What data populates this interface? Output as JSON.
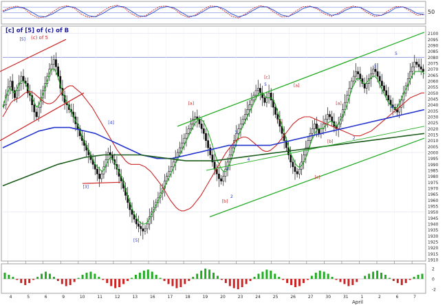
{
  "chart_data": [
    {
      "panel": "oscillator",
      "type": "line",
      "y_tick_labels": [
        "50"
      ],
      "series": [
        {
          "role": "fast",
          "color": "#cc2222",
          "values": [
            60,
            78,
            86,
            72,
            40,
            22,
            28,
            55,
            80,
            88,
            74,
            42,
            25,
            30,
            58,
            82,
            90,
            76,
            45,
            26,
            34,
            62,
            84,
            86,
            70,
            40,
            24,
            38,
            66,
            86,
            84,
            60,
            32,
            22,
            44,
            72,
            88,
            80,
            52,
            28,
            30,
            58,
            82,
            86,
            70,
            44,
            30,
            48,
            74,
            86,
            78,
            50,
            30,
            36,
            62,
            84,
            82,
            60,
            36,
            40
          ]
        },
        {
          "role": "slow",
          "color": "#2244cc",
          "values": [
            55,
            70,
            80,
            76,
            54,
            32,
            28,
            44,
            68,
            84,
            80,
            56,
            34,
            28,
            46,
            70,
            86,
            82,
            58,
            34,
            30,
            50,
            74,
            84,
            76,
            52,
            30,
            34,
            56,
            78,
            84,
            70,
            44,
            28,
            38,
            62,
            82,
            82,
            62,
            38,
            30,
            48,
            72,
            84,
            76,
            54,
            36,
            42,
            64,
            80,
            80,
            60,
            38,
            36,
            52,
            76,
            82,
            68,
            46,
            40
          ]
        }
      ]
    },
    {
      "panel": "price",
      "type": "candlestick",
      "title": "[c] of [5] of (c) of B",
      "subtitle": "(c) of 5",
      "ylim": [
        1910,
        2105
      ],
      "y_tick_labels": [
        "2100",
        "2095",
        "2090",
        "2085",
        "2080",
        "2075",
        "2070",
        "2065",
        "2060",
        "2055",
        "2050",
        "2045",
        "2040",
        "2035",
        "2030",
        "2025",
        "2020",
        "2015",
        "2010",
        "2005",
        "2000",
        "1995",
        "1990",
        "1985",
        "1980",
        "1975",
        "1970",
        "1965",
        "1960",
        "1955",
        "1950",
        "1945",
        "1940",
        "1935",
        "1930",
        "1925",
        "1920",
        "1915",
        "1910"
      ],
      "x_tick_labels": [
        "4",
        "5",
        "6",
        "9",
        "10",
        "11",
        "12",
        "13",
        "16",
        "17",
        "18",
        "19",
        "20",
        "23",
        "24",
        "25",
        "26",
        "27",
        "30",
        "31",
        "1",
        "2",
        "6",
        "7"
      ],
      "x_subtitle": "April",
      "closes": [
        2040,
        2048,
        2055,
        2060,
        2052,
        2046,
        2052,
        2058,
        2064,
        2060,
        2058,
        2050,
        2048,
        2040,
        2034,
        2030,
        2038,
        2046,
        2052,
        2058,
        2064,
        2070,
        2074,
        2078,
        2072,
        2064,
        2054,
        2048,
        2042,
        2040,
        2036,
        2034,
        2030,
        2024,
        2020,
        2014,
        2010,
        2006,
        2002,
        1998,
        1994,
        1990,
        1986,
        1982,
        1978,
        1982,
        1988,
        1994,
        2000,
        1998,
        1994,
        1990,
        1986,
        1980,
        1976,
        1970,
        1964,
        1958,
        1952,
        1948,
        1944,
        1940,
        1938,
        1936,
        1934,
        1936,
        1940,
        1946,
        1950,
        1954,
        1958,
        1962,
        1966,
        1970,
        1976,
        1980,
        1984,
        1988,
        1992,
        1996,
        2000,
        2004,
        2008,
        2012,
        2016,
        2020,
        2024,
        2028,
        2030,
        2028,
        2024,
        2020,
        2016,
        2010,
        2004,
        1998,
        1992,
        1986,
        1982,
        1978,
        1976,
        1980,
        1986,
        1992,
        1998,
        2004,
        2010,
        2016,
        2020,
        2024,
        2028,
        2032,
        2036,
        2040,
        2044,
        2048,
        2052,
        2054,
        2050,
        2046,
        2042,
        2046,
        2050,
        2044,
        2038,
        2032,
        2028,
        2022,
        2016,
        2010,
        2004,
        1998,
        1992,
        1988,
        1984,
        1982,
        1986,
        1992,
        1998,
        2004,
        2010,
        2016,
        2020,
        2024,
        2020,
        2016,
        2020,
        2024,
        2028,
        2032,
        2030,
        2026,
        2022,
        2020,
        2024,
        2030,
        2036,
        2042,
        2048,
        2054,
        2060,
        2064,
        2068,
        2066,
        2062,
        2058,
        2054,
        2058,
        2062,
        2066,
        2070,
        2068,
        2064,
        2060,
        2056,
        2052,
        2048,
        2044,
        2040,
        2038,
        2036,
        2034,
        2038,
        2044,
        2050,
        2056,
        2062,
        2068,
        2072,
        2076,
        2074,
        2072,
        2070,
        2068
      ],
      "moving_averages": [
        {
          "color": "#22aa22",
          "values": [
            2038,
            2044,
            2050,
            2054,
            2052,
            2050,
            2052,
            2056,
            2060,
            2060,
            2058,
            2054,
            2050,
            2046,
            2042,
            2038,
            2040,
            2044,
            2050,
            2056,
            2062,
            2068,
            2070,
            2070,
            2066,
            2060,
            2054,
            2048,
            2044,
            2040,
            2036,
            2032,
            2028,
            2024,
            2020,
            2014,
            2010,
            2006,
            2002,
            1998,
            1994,
            1990,
            1988,
            1986,
            1984,
            1986,
            1990,
            1994,
            1996,
            1994,
            1990,
            1986,
            1982,
            1978,
            1972,
            1966,
            1960,
            1955,
            1950,
            1946,
            1943,
            1941,
            1940,
            1940,
            1941,
            1944,
            1948,
            1952,
            1956,
            1960,
            1964,
            1968,
            1972,
            1976,
            1980,
            1984,
            1988,
            1992,
            1996,
            2000,
            2004,
            2008,
            2012,
            2016,
            2020,
            2024,
            2026,
            2028,
            2028,
            2026,
            2022,
            2018,
            2012,
            2006,
            2000,
            1994,
            1990,
            1986,
            1984,
            1984,
            1988,
            1992,
            1998,
            2004,
            2010,
            2016,
            2020,
            2024,
            2028,
            2032,
            2036,
            2040,
            2044,
            2048,
            2050,
            2050,
            2048,
            2046,
            2046,
            2046,
            2044,
            2040,
            2034,
            2028,
            2022,
            2016,
            2010,
            2004,
            1998,
            1994,
            1990,
            1988,
            1988,
            1990,
            1994,
            1998,
            2004,
            2010,
            2014,
            2018,
            2020,
            2020,
            2020,
            2022,
            2024,
            2026,
            2026,
            2024,
            2022,
            2024,
            2028,
            2032,
            2036,
            2042,
            2048,
            2054,
            2058,
            2062,
            2062,
            2060,
            2058,
            2058,
            2060,
            2062,
            2064,
            2064,
            2062,
            2058,
            2054,
            2050,
            2046,
            2042,
            2040,
            2038,
            2037,
            2038,
            2042,
            2046,
            2050,
            2054,
            2058,
            2062,
            2066,
            2068,
            2068,
            2068,
            2068,
            2066
          ]
        },
        {
          "color": "#cc2222",
          "values": [
            2030,
            2034,
            2038,
            2042,
            2044,
            2045,
            2046,
            2048,
            2050,
            2051,
            2051,
            2050,
            2048,
            2046,
            2044,
            2042,
            2041,
            2041,
            2042,
            2044,
            2047,
            2050,
            2053,
            2055,
            2056,
            2056,
            2054,
            2052,
            2050,
            2047,
            2044,
            2041,
            2038,
            2034,
            2030,
            2026,
            2022,
            2018,
            2014,
            2010,
            2006,
            2002,
            1999,
            1996,
            1993,
            1991,
            1990,
            1990,
            1990,
            1990,
            1989,
            1988,
            1986,
            1984,
            1981,
            1978,
            1975,
            1972,
            1968,
            1964,
            1960,
            1957,
            1954,
            1952,
            1951,
            1951,
            1952,
            1953,
            1955,
            1958,
            1961,
            1964,
            1968,
            1972,
            1976,
            1980,
            1984,
            1988,
            1992,
            1996,
            2000,
            2003,
            2006,
            2009,
            2011,
            2012,
            2013,
            2013,
            2012,
            2010,
            2008,
            2006,
            2004,
            2002,
            2001,
            2001,
            2002,
            2004,
            2006,
            2009,
            2012,
            2015,
            2018,
            2021,
            2024,
            2026,
            2028,
            2029,
            2030,
            2030,
            2030,
            2029,
            2028,
            2027,
            2026,
            2025,
            2024,
            2023,
            2022,
            2021,
            2020,
            2019,
            2018,
            2017,
            2016,
            2015,
            2014,
            2014,
            2014,
            2015,
            2016,
            2017,
            2018,
            2020,
            2022,
            2024,
            2026,
            2028,
            2030,
            2032,
            2034,
            2036,
            2038,
            2040,
            2042,
            2044,
            2046,
            2047,
            2048,
            2049,
            2050,
            2050
          ]
        },
        {
          "color": "#2233cc",
          "values": [
            2004,
            2006,
            2008,
            2010,
            2012,
            2014,
            2016,
            2018,
            2019,
            2020,
            2021,
            2021,
            2021,
            2021,
            2020,
            2019,
            2018,
            2017,
            2016,
            2014,
            2012,
            2010,
            2008,
            2006,
            2004,
            2002,
            2000,
            1998,
            1997,
            1996,
            1995,
            1995,
            1995,
            1995,
            1996,
            1997,
            1998,
            1999,
            2000,
            2001,
            2002,
            2003,
            2004,
            2005,
            2006,
            2006,
            2006,
            2006,
            2006,
            2006,
            2006,
            2006,
            2006,
            2007,
            2008,
            2009,
            2010,
            2011,
            2012,
            2013,
            2014,
            2015,
            2016,
            2017,
            2018,
            2019,
            2020,
            2021,
            2022,
            2023,
            2024,
            2025,
            2026,
            2027,
            2028,
            2029,
            2030,
            2031,
            2032,
            2033,
            2034,
            2035,
            2036
          ]
        },
        {
          "color": "#1a5a1a",
          "values": [
            1972,
            1975,
            1978,
            1981,
            1984,
            1987,
            1990,
            1992,
            1994,
            1996,
            1997,
            1998,
            1998,
            1998,
            1998,
            1998,
            1997,
            1996,
            1995,
            1994,
            1993,
            1993,
            1993,
            1993,
            1994,
            1995,
            1996,
            1997,
            1998,
            1999,
            2000,
            2001,
            2002,
            2003,
            2004,
            2005,
            2006,
            2007,
            2008,
            2009,
            2010,
            2011,
            2012,
            2013,
            2014,
            2015,
            2016
          ]
        }
      ],
      "wave_labels": [
        {
          "text": "[5]",
          "x": 0.04,
          "y": 2094,
          "color": "#2233cc"
        },
        {
          "text": "[3]",
          "x": 0.19,
          "y": 1970,
          "color": "#2233cc"
        },
        {
          "text": "[4]",
          "x": 0.25,
          "y": 2024,
          "color": "#2233cc"
        },
        {
          "text": "[5]",
          "x": 0.31,
          "y": 1925,
          "color": "#2233cc"
        },
        {
          "text": "[a]",
          "x": 0.44,
          "y": 2040,
          "color": "#cc2222"
        },
        {
          "text": "[b]",
          "x": 0.52,
          "y": 1958,
          "color": "#cc2222"
        },
        {
          "text": "1",
          "x": 0.53,
          "y": 1985,
          "color": "#2233cc"
        },
        {
          "text": "2",
          "x": 0.54,
          "y": 1962,
          "color": "#2233cc"
        },
        {
          "text": "3",
          "x": 0.55,
          "y": 2016,
          "color": "#2233cc"
        },
        {
          "text": "4",
          "x": 0.58,
          "y": 1993,
          "color": "#2233cc"
        },
        {
          "text": "5",
          "x": 0.62,
          "y": 2056,
          "color": "#2233cc"
        },
        {
          "text": "[c]",
          "x": 0.62,
          "y": 2062,
          "color": "#cc2222"
        },
        {
          "text": "[a]",
          "x": 0.69,
          "y": 2055,
          "color": "#cc2222"
        },
        {
          "text": "[b]",
          "x": 0.65,
          "y": 2025,
          "color": "#cc2222"
        },
        {
          "text": "[c]",
          "x": 0.74,
          "y": 1978,
          "color": "#cc2222"
        },
        {
          "text": "[a]",
          "x": 0.79,
          "y": 2040,
          "color": "#cc2222"
        },
        {
          "text": "[b]",
          "x": 0.77,
          "y": 2008,
          "color": "#cc2222"
        },
        {
          "text": "2",
          "x": 0.83,
          "y": 2011,
          "color": "#2233cc"
        },
        {
          "text": "3",
          "x": 0.88,
          "y": 2071,
          "color": "#2233cc"
        },
        {
          "text": "5",
          "x": 0.93,
          "y": 2082,
          "color": "#2233cc"
        },
        {
          "text": "4",
          "x": 0.92,
          "y": 2037,
          "color": "#2233cc"
        }
      ]
    },
    {
      "panel": "momentum",
      "type": "bar",
      "y_tick_labels": [
        "2",
        "0",
        "-2"
      ],
      "values": [
        1.2,
        0.8,
        0.4,
        -0.2,
        -0.8,
        -1.2,
        -0.8,
        -0.2,
        0.4,
        1.0,
        1.4,
        1.0,
        0.4,
        -0.4,
        -1.0,
        -1.4,
        -1.2,
        -0.6,
        0.2,
        0.8,
        1.2,
        1.4,
        1.0,
        0.4,
        -0.2,
        -0.8,
        -1.4,
        -1.8,
        -1.6,
        -1.0,
        -0.4,
        0.2,
        0.8,
        1.2,
        1.6,
        1.8,
        1.4,
        0.8,
        0.2,
        -0.4,
        -1.0,
        -1.4,
        -1.8,
        -1.6,
        -1.0,
        -0.4,
        0.4,
        1.0,
        1.6,
        2.0,
        1.8,
        1.2,
        0.6,
        -0.2,
        -0.8,
        -1.4,
        -1.8,
        -2.0,
        -1.6,
        -1.0,
        -0.4,
        0.4,
        1.0,
        1.4,
        1.8,
        1.6,
        1.0,
        0.4,
        -0.2,
        -0.8,
        -1.2,
        -1.6,
        -1.4,
        -0.8,
        -0.2,
        0.6,
        1.2,
        1.6,
        1.4,
        1.0,
        0.4,
        -0.2,
        -0.6,
        -1.0,
        -1.4,
        -1.2,
        -0.6,
        0.0,
        0.6,
        1.0,
        1.4,
        1.6,
        1.2,
        0.8,
        0.2,
        -0.4,
        -0.8,
        -1.2,
        -0.8,
        -0.2,
        0.4,
        0.8,
        1.0
      ]
    }
  ]
}
